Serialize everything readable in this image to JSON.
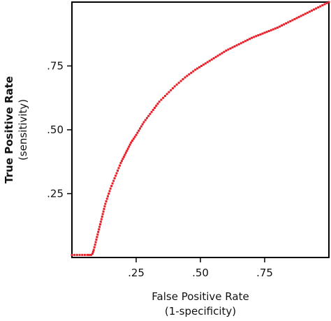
{
  "chart_data": {
    "type": "scatter",
    "xlabel": "False Positive Rate",
    "xlabel_sub": "(1-specificity)",
    "ylabel": "True Positive Rate",
    "ylabel_sub": "(sensitivity)",
    "xlim": [
      0,
      1
    ],
    "ylim": [
      0,
      1
    ],
    "x_ticks": [
      {
        "value": 0.25,
        "label": ".25"
      },
      {
        "value": 0.5,
        "label": ".50"
      },
      {
        "value": 0.75,
        "label": ".75"
      }
    ],
    "y_ticks": [
      {
        "value": 0.25,
        "label": ".25"
      },
      {
        "value": 0.5,
        "label": ".50"
      },
      {
        "value": 0.75,
        "label": ".75"
      }
    ],
    "grid": false,
    "legend": "none",
    "series": [
      {
        "color": "#e8202a",
        "x": [
          0.0,
          0.02,
          0.04,
          0.06,
          0.075,
          0.08,
          0.085,
          0.09,
          0.095,
          0.1,
          0.11,
          0.12,
          0.13,
          0.14,
          0.15,
          0.17,
          0.19,
          0.21,
          0.23,
          0.25,
          0.28,
          0.31,
          0.34,
          0.37,
          0.4,
          0.44,
          0.48,
          0.52,
          0.56,
          0.6,
          0.65,
          0.7,
          0.75,
          0.8,
          0.85,
          0.9,
          0.95,
          1.0
        ],
        "y": [
          0.01,
          0.01,
          0.01,
          0.01,
          0.01,
          0.015,
          0.03,
          0.05,
          0.07,
          0.09,
          0.13,
          0.17,
          0.21,
          0.24,
          0.27,
          0.32,
          0.37,
          0.41,
          0.45,
          0.48,
          0.53,
          0.57,
          0.61,
          0.64,
          0.67,
          0.705,
          0.735,
          0.76,
          0.785,
          0.81,
          0.835,
          0.86,
          0.88,
          0.9,
          0.925,
          0.95,
          0.975,
          1.0
        ]
      }
    ]
  }
}
